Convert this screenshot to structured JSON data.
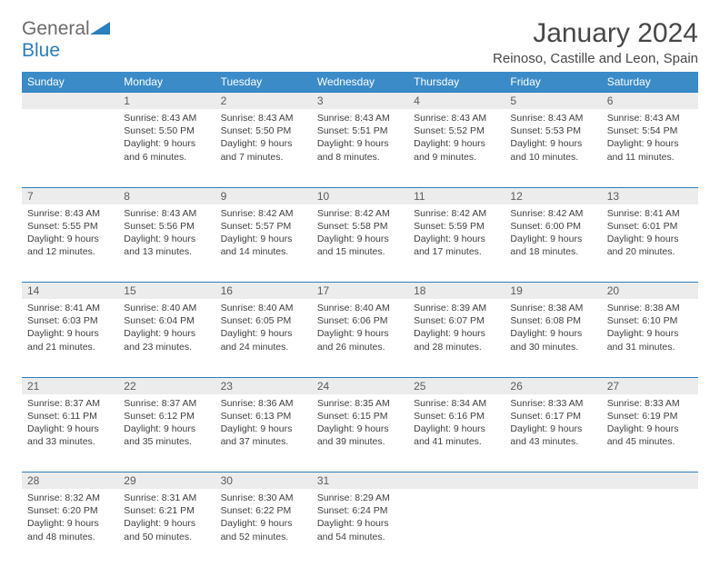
{
  "brand": {
    "part1": "General",
    "part2": "Blue"
  },
  "title": "January 2024",
  "location": "Reinoso, Castille and Leon, Spain",
  "weekdays": [
    "Sunday",
    "Monday",
    "Tuesday",
    "Wednesday",
    "Thursday",
    "Friday",
    "Saturday"
  ],
  "colors": {
    "header_bg": "#3b8bc9",
    "accent": "#2a7fbf",
    "daynum_bg": "#ececec",
    "text": "#3f3f3f"
  },
  "weeks": [
    [
      null,
      {
        "n": "1",
        "sr": "8:43 AM",
        "ss": "5:50 PM",
        "dl": "9 hours and 6 minutes."
      },
      {
        "n": "2",
        "sr": "8:43 AM",
        "ss": "5:50 PM",
        "dl": "9 hours and 7 minutes."
      },
      {
        "n": "3",
        "sr": "8:43 AM",
        "ss": "5:51 PM",
        "dl": "9 hours and 8 minutes."
      },
      {
        "n": "4",
        "sr": "8:43 AM",
        "ss": "5:52 PM",
        "dl": "9 hours and 9 minutes."
      },
      {
        "n": "5",
        "sr": "8:43 AM",
        "ss": "5:53 PM",
        "dl": "9 hours and 10 minutes."
      },
      {
        "n": "6",
        "sr": "8:43 AM",
        "ss": "5:54 PM",
        "dl": "9 hours and 11 minutes."
      }
    ],
    [
      {
        "n": "7",
        "sr": "8:43 AM",
        "ss": "5:55 PM",
        "dl": "9 hours and 12 minutes."
      },
      {
        "n": "8",
        "sr": "8:43 AM",
        "ss": "5:56 PM",
        "dl": "9 hours and 13 minutes."
      },
      {
        "n": "9",
        "sr": "8:42 AM",
        "ss": "5:57 PM",
        "dl": "9 hours and 14 minutes."
      },
      {
        "n": "10",
        "sr": "8:42 AM",
        "ss": "5:58 PM",
        "dl": "9 hours and 15 minutes."
      },
      {
        "n": "11",
        "sr": "8:42 AM",
        "ss": "5:59 PM",
        "dl": "9 hours and 17 minutes."
      },
      {
        "n": "12",
        "sr": "8:42 AM",
        "ss": "6:00 PM",
        "dl": "9 hours and 18 minutes."
      },
      {
        "n": "13",
        "sr": "8:41 AM",
        "ss": "6:01 PM",
        "dl": "9 hours and 20 minutes."
      }
    ],
    [
      {
        "n": "14",
        "sr": "8:41 AM",
        "ss": "6:03 PM",
        "dl": "9 hours and 21 minutes."
      },
      {
        "n": "15",
        "sr": "8:40 AM",
        "ss": "6:04 PM",
        "dl": "9 hours and 23 minutes."
      },
      {
        "n": "16",
        "sr": "8:40 AM",
        "ss": "6:05 PM",
        "dl": "9 hours and 24 minutes."
      },
      {
        "n": "17",
        "sr": "8:40 AM",
        "ss": "6:06 PM",
        "dl": "9 hours and 26 minutes."
      },
      {
        "n": "18",
        "sr": "8:39 AM",
        "ss": "6:07 PM",
        "dl": "9 hours and 28 minutes."
      },
      {
        "n": "19",
        "sr": "8:38 AM",
        "ss": "6:08 PM",
        "dl": "9 hours and 30 minutes."
      },
      {
        "n": "20",
        "sr": "8:38 AM",
        "ss": "6:10 PM",
        "dl": "9 hours and 31 minutes."
      }
    ],
    [
      {
        "n": "21",
        "sr": "8:37 AM",
        "ss": "6:11 PM",
        "dl": "9 hours and 33 minutes."
      },
      {
        "n": "22",
        "sr": "8:37 AM",
        "ss": "6:12 PM",
        "dl": "9 hours and 35 minutes."
      },
      {
        "n": "23",
        "sr": "8:36 AM",
        "ss": "6:13 PM",
        "dl": "9 hours and 37 minutes."
      },
      {
        "n": "24",
        "sr": "8:35 AM",
        "ss": "6:15 PM",
        "dl": "9 hours and 39 minutes."
      },
      {
        "n": "25",
        "sr": "8:34 AM",
        "ss": "6:16 PM",
        "dl": "9 hours and 41 minutes."
      },
      {
        "n": "26",
        "sr": "8:33 AM",
        "ss": "6:17 PM",
        "dl": "9 hours and 43 minutes."
      },
      {
        "n": "27",
        "sr": "8:33 AM",
        "ss": "6:19 PM",
        "dl": "9 hours and 45 minutes."
      }
    ],
    [
      {
        "n": "28",
        "sr": "8:32 AM",
        "ss": "6:20 PM",
        "dl": "9 hours and 48 minutes."
      },
      {
        "n": "29",
        "sr": "8:31 AM",
        "ss": "6:21 PM",
        "dl": "9 hours and 50 minutes."
      },
      {
        "n": "30",
        "sr": "8:30 AM",
        "ss": "6:22 PM",
        "dl": "9 hours and 52 minutes."
      },
      {
        "n": "31",
        "sr": "8:29 AM",
        "ss": "6:24 PM",
        "dl": "9 hours and 54 minutes."
      },
      null,
      null,
      null
    ]
  ],
  "labels": {
    "sunrise": "Sunrise: ",
    "sunset": "Sunset: ",
    "daylight": "Daylight: "
  }
}
